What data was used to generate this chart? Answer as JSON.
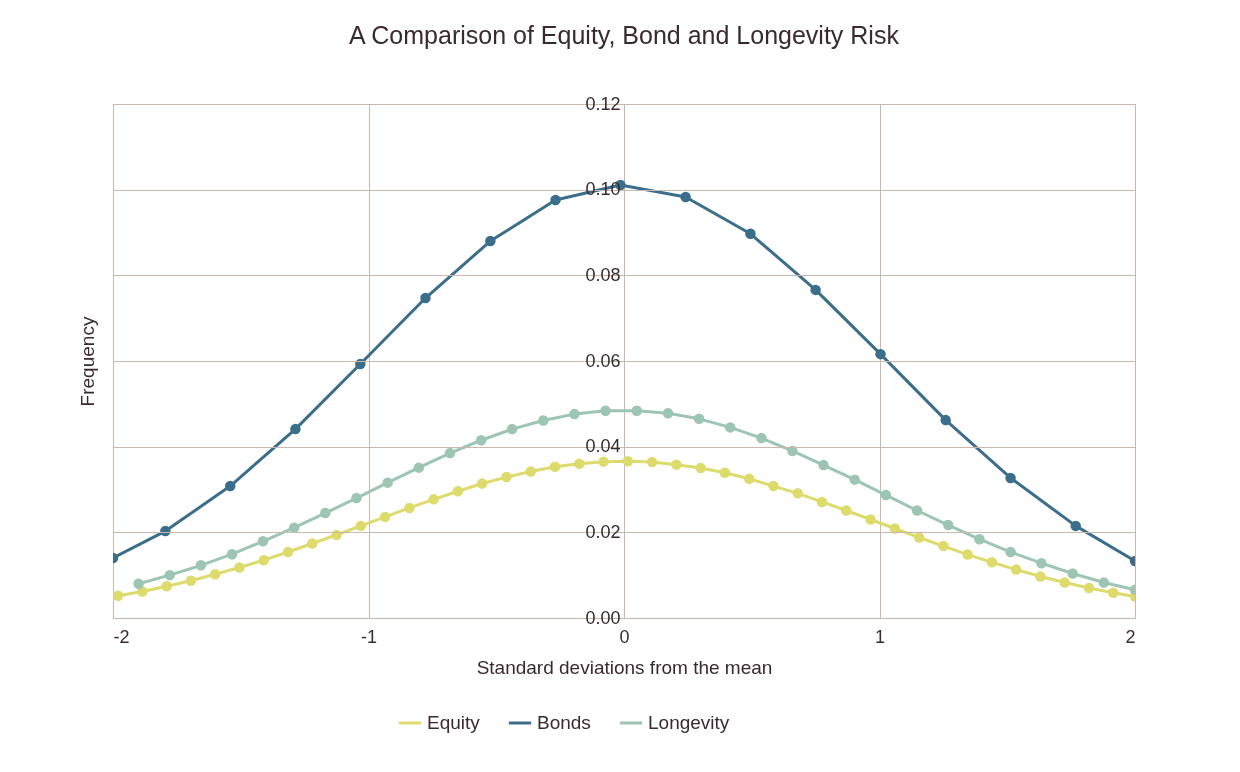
{
  "chart_data": {
    "type": "line",
    "title": "A Comparison of Equity, Bond and Longevity Risk",
    "xlabel": "Standard deviations from the mean",
    "ylabel": "Frequency",
    "xlim": [
      -2,
      2
    ],
    "xticks": [
      -2,
      -1,
      0,
      1,
      2
    ],
    "ylim": [
      0,
      0.12
    ],
    "yticks": [
      {
        "value": 0,
        "label": "0.00"
      },
      {
        "value": 0.02,
        "label": "0.02"
      },
      {
        "value": 0.04,
        "label": "0.04"
      },
      {
        "value": 0.06,
        "label": "0.06"
      },
      {
        "value": 0.08,
        "label": "0.08"
      },
      {
        "value": 0.1,
        "label": "0.10"
      },
      {
        "value": 0.12,
        "label": "0.12"
      }
    ],
    "grid": true,
    "legend": "bottom",
    "marker": "circle",
    "line_style": "solid",
    "series": [
      {
        "name": "Equity",
        "color": "#dcdb6c",
        "x": [
          -1.98,
          -1.885,
          -1.79,
          -1.695,
          -1.6,
          -1.505,
          -1.41,
          -1.315,
          -1.22,
          -1.125,
          -1.03,
          -0.935,
          -0.84,
          -0.745,
          -0.65,
          -0.555,
          -0.46,
          -0.365,
          -0.27,
          -0.175,
          -0.08,
          0.015,
          0.11,
          0.205,
          0.3,
          0.395,
          0.49,
          0.585,
          0.68,
          0.775,
          0.87,
          0.965,
          1.06,
          1.155,
          1.25,
          1.345,
          1.44,
          1.535,
          1.63,
          1.725,
          1.82,
          1.915,
          2
        ],
        "values": [
          0.0052,
          0.0062,
          0.0074,
          0.0087,
          0.0102,
          0.0118,
          0.0135,
          0.0154,
          0.0174,
          0.0194,
          0.0215,
          0.0236,
          0.0257,
          0.0277,
          0.0296,
          0.0314,
          0.0329,
          0.0342,
          0.0353,
          0.036,
          0.0365,
          0.0366,
          0.0364,
          0.0358,
          0.035,
          0.0339,
          0.0325,
          0.0308,
          0.0291,
          0.0271,
          0.0251,
          0.023,
          0.0209,
          0.0188,
          0.0168,
          0.0148,
          0.013,
          0.0113,
          0.0097,
          0.0083,
          0.007,
          0.0059,
          0.005
        ]
      },
      {
        "name": "Bonds",
        "color": "#3b6e8a",
        "x": [
          -2,
          -1.795,
          -1.541,
          -1.286,
          -1.032,
          -0.777,
          -0.523,
          -0.268,
          -0.014,
          0.241,
          0.495,
          0.75,
          1.004,
          1.259,
          1.513,
          1.768,
          2
        ],
        "values": [
          0.014,
          0.0203,
          0.0308,
          0.0441,
          0.0593,
          0.0747,
          0.088,
          0.0976,
          0.1011,
          0.0983,
          0.0897,
          0.0766,
          0.0616,
          0.0462,
          0.0327,
          0.0215,
          0.0133
        ]
      },
      {
        "name": "Longevity",
        "color": "#9cc5b4",
        "x": [
          -1.9,
          -1.778,
          -1.656,
          -1.534,
          -1.413,
          -1.291,
          -1.169,
          -1.047,
          -0.925,
          -0.803,
          -0.681,
          -0.559,
          -0.438,
          -0.316,
          -0.194,
          -0.072,
          0.05,
          0.172,
          0.294,
          0.416,
          0.538,
          0.659,
          0.781,
          0.903,
          1.025,
          1.147,
          1.269,
          1.391,
          1.513,
          1.634,
          1.756,
          1.878,
          2
        ],
        "values": [
          0.008,
          0.01,
          0.0123,
          0.0149,
          0.0179,
          0.0211,
          0.0245,
          0.028,
          0.0316,
          0.0351,
          0.0385,
          0.0415,
          0.0441,
          0.0461,
          0.0476,
          0.0484,
          0.0484,
          0.0478,
          0.0465,
          0.0445,
          0.042,
          0.039,
          0.0357,
          0.0323,
          0.0287,
          0.0251,
          0.0217,
          0.0184,
          0.0154,
          0.0128,
          0.0104,
          0.0083,
          0.0066
        ]
      }
    ]
  }
}
